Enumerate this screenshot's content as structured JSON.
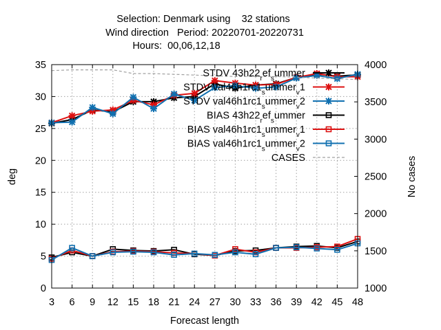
{
  "chart_data": {
    "type": "line",
    "title_lines": [
      "Selection: Denmark using    32 stations",
      "Wind direction   Period: 20220701-20220731",
      "Hours:  00,06,12,18"
    ],
    "xlabel": "Forecast length",
    "ylabel": "deg",
    "y2label": "No cases",
    "x": [
      3,
      6,
      9,
      12,
      15,
      18,
      21,
      24,
      27,
      30,
      33,
      36,
      39,
      42,
      45,
      48
    ],
    "xlim": [
      3,
      48
    ],
    "ylim": [
      0,
      35
    ],
    "y2lim": [
      1000,
      4000
    ],
    "yticks": [
      0,
      5,
      10,
      15,
      20,
      25,
      30,
      35
    ],
    "y2ticks": [
      1000,
      1500,
      2000,
      2500,
      3000,
      3500,
      4000
    ],
    "grid": true,
    "legend_position": "top-right",
    "colors": {
      "black": "#000000",
      "red": "#dd1111",
      "blue": "#1070b0",
      "cases": "#a0a0a0"
    },
    "series": [
      {
        "name": "STDV 43h22_ref_summer",
        "legend_html": "STDV 43h22<tspan baseline-shift=\"sub\" font-size=\"10\">r</tspan>ef<tspan baseline-shift=\"sub\" font-size=\"10\">s</tspan>ummer",
        "color": "#000000",
        "marker": "star",
        "axis": "y",
        "values": [
          25.8,
          26.4,
          27.9,
          27.6,
          29.2,
          29.2,
          29.8,
          30.0,
          32.0,
          31.3,
          31.8,
          32.0,
          33.0,
          33.5,
          33.2,
          33.4
        ]
      },
      {
        "name": "STDV val46h1rc1_summer_v1",
        "legend_html": "STDV val46h1rc1<tspan baseline-shift=\"sub\" font-size=\"10\">s</tspan>ummer<tspan baseline-shift=\"sub\" font-size=\"10\">v</tspan>1",
        "color": "#dd1111",
        "marker": "star",
        "axis": "y",
        "values": [
          25.9,
          27.0,
          27.7,
          27.9,
          29.4,
          28.7,
          30.2,
          30.5,
          32.5,
          32.1,
          31.8,
          31.9,
          33.0,
          33.6,
          33.1,
          33.1
        ]
      },
      {
        "name": "STDV val46h1rc1_summer_v2",
        "legend_html": "STDV val46h1rc1<tspan baseline-shift=\"sub\" font-size=\"10\">s</tspan>ummer<tspan baseline-shift=\"sub\" font-size=\"10\">v</tspan>2",
        "color": "#1070b0",
        "marker": "star",
        "axis": "y",
        "values": [
          25.9,
          26.0,
          28.3,
          27.3,
          29.9,
          28.1,
          30.4,
          29.4,
          31.4,
          31.7,
          31.3,
          31.5,
          32.9,
          33.3,
          32.8,
          33.5
        ]
      },
      {
        "name": "BIAS 43h22_ref_summer",
        "legend_html": "BIAS 43h22<tspan baseline-shift=\"sub\" font-size=\"10\">r</tspan>ef<tspan baseline-shift=\"sub\" font-size=\"10\">s</tspan>ummer",
        "color": "#000000",
        "marker": "square",
        "axis": "y",
        "values": [
          4.8,
          5.6,
          5.0,
          6.1,
          5.9,
          5.8,
          6.0,
          5.3,
          5.1,
          5.8,
          5.9,
          6.3,
          6.5,
          6.6,
          6.3,
          7.3
        ]
      },
      {
        "name": "BIAS val46h1rc1_summer_v1",
        "legend_html": "BIAS val46h1rc1<tspan baseline-shift=\"sub\" font-size=\"10\">s</tspan>ummer<tspan baseline-shift=\"sub\" font-size=\"10\">v</tspan>1",
        "color": "#dd1111",
        "marker": "square",
        "axis": "y",
        "values": [
          4.6,
          5.9,
          5.0,
          5.7,
          5.8,
          5.7,
          5.5,
          5.4,
          5.1,
          6.1,
          5.6,
          6.3,
          6.3,
          6.4,
          6.5,
          7.7
        ]
      },
      {
        "name": "BIAS val46h1rc1_summer_v2",
        "legend_html": "BIAS val46h1rc1<tspan baseline-shift=\"sub\" font-size=\"10\">s</tspan>ummer<tspan baseline-shift=\"sub\" font-size=\"10\">v</tspan>2",
        "color": "#1070b0",
        "marker": "square",
        "axis": "y",
        "values": [
          4.4,
          6.3,
          5.0,
          5.6,
          5.7,
          5.6,
          5.2,
          5.4,
          5.2,
          5.6,
          5.3,
          6.3,
          6.4,
          6.2,
          6.0,
          7.0
        ]
      },
      {
        "name": "CASES",
        "legend_html": "CASES",
        "color": "#a0a0a0",
        "marker": "none",
        "dashed": true,
        "axis": "y2",
        "values": [
          3920,
          3930,
          3930,
          3930,
          3880,
          3880,
          3870,
          3860,
          3850,
          3840,
          3840,
          3840,
          3830,
          3820,
          3810,
          3800
        ]
      }
    ]
  }
}
